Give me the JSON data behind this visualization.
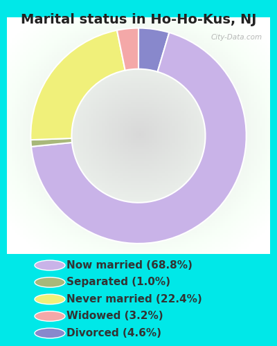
{
  "title": "Marital status in Ho-Ho-Kus, NJ",
  "slices": [
    68.8,
    1.0,
    22.4,
    3.2,
    4.6
  ],
  "labels": [
    "Now married (68.8%)",
    "Separated (1.0%)",
    "Never married (22.4%)",
    "Widowed (3.2%)",
    "Divorced (4.6%)"
  ],
  "colors": [
    "#c9b3e8",
    "#a8b87a",
    "#f0f07a",
    "#f4a8a8",
    "#8888cc"
  ],
  "bg_outer": "#00e8e8",
  "bg_panel": "#eaf5ea",
  "watermark": "City-Data.com",
  "title_fontsize": 14,
  "legend_fontsize": 11,
  "donut_width": 0.38,
  "startangle": 90,
  "slice_order": [
    4,
    0,
    1,
    2,
    3
  ],
  "title_color": "#222222",
  "legend_text_color": "#333333"
}
